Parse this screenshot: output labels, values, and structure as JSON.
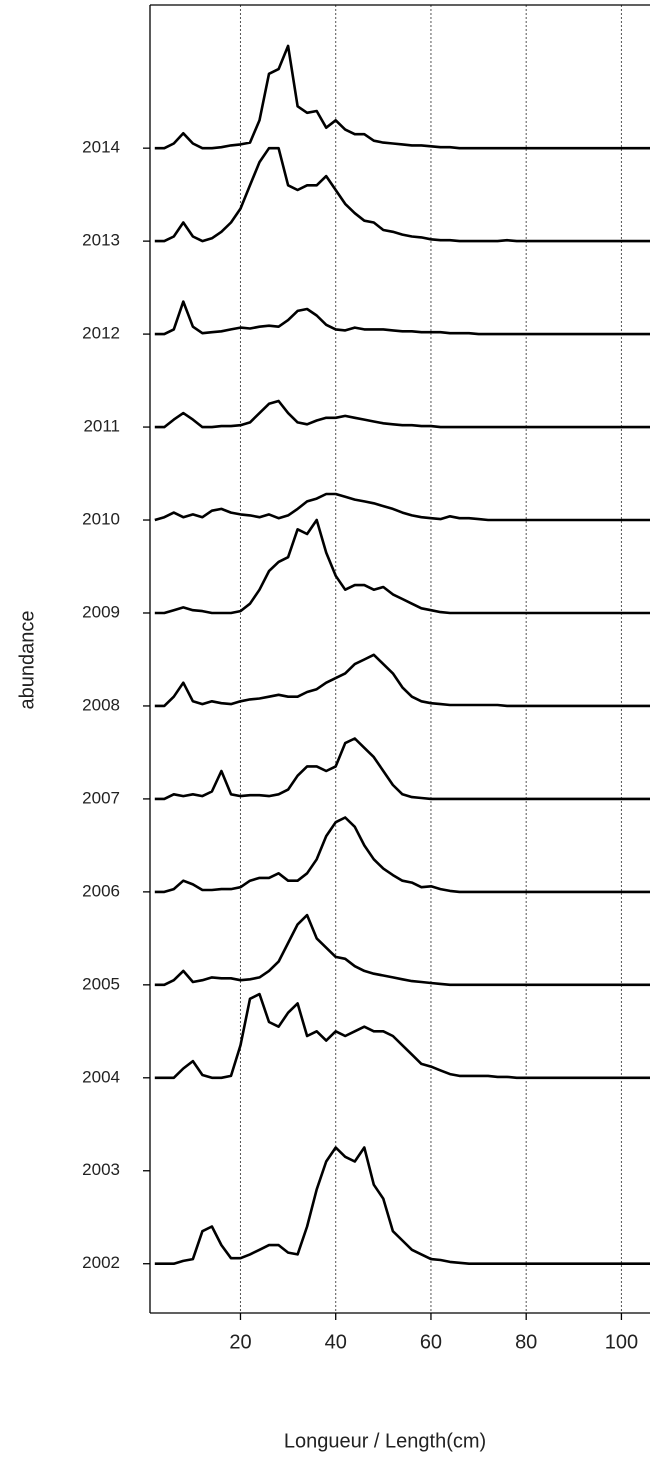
{
  "chart_data": {
    "type": "ridgeline",
    "x_label": "Longueur / Length(cm)",
    "y_label": "abundance",
    "xlim": [
      1,
      106
    ],
    "xticks": [
      20,
      40,
      60,
      80,
      100
    ],
    "ylim": [
      2001.47,
      2015.54
    ],
    "yticks": [
      2002,
      2003,
      2004,
      2005,
      2006,
      2007,
      2008,
      2009,
      2010,
      2011,
      2012,
      2013,
      2014
    ],
    "grid": true,
    "x": [
      2,
      4,
      6,
      8,
      10,
      12,
      14,
      16,
      18,
      20,
      22,
      24,
      26,
      28,
      30,
      32,
      34,
      36,
      38,
      40,
      42,
      44,
      46,
      48,
      50,
      52,
      54,
      56,
      58,
      60,
      62,
      64,
      66,
      68,
      70,
      72,
      74,
      76,
      78,
      80,
      82,
      84,
      86,
      88,
      90,
      92,
      94,
      96,
      98,
      100,
      102,
      104,
      106
    ],
    "series": [
      {
        "baseline": 2014,
        "color": "#000000",
        "values": [
          0,
          0,
          0.05,
          0.16,
          0.05,
          0,
          0,
          0.01,
          0.03,
          0.04,
          0.06,
          0.3,
          0.8,
          0.85,
          1.1,
          0.45,
          0.38,
          0.4,
          0.22,
          0.3,
          0.2,
          0.15,
          0.15,
          0.08,
          0.06,
          0.05,
          0.04,
          0.03,
          0.03,
          0.02,
          0.01,
          0.01,
          0,
          0,
          0,
          0,
          0,
          0,
          0,
          0,
          0,
          0,
          0,
          0,
          0,
          0,
          0,
          0,
          0,
          0,
          0,
          0,
          0
        ]
      },
      {
        "baseline": 2013,
        "color": "#000000",
        "values": [
          0,
          0,
          0.05,
          0.2,
          0.05,
          0,
          0.03,
          0.1,
          0.2,
          0.35,
          0.6,
          0.85,
          1.0,
          1.0,
          0.6,
          0.55,
          0.6,
          0.6,
          0.7,
          0.55,
          0.4,
          0.3,
          0.22,
          0.2,
          0.12,
          0.1,
          0.07,
          0.05,
          0.04,
          0.02,
          0.01,
          0.01,
          0,
          0,
          0,
          0,
          0,
          0.01,
          0,
          0,
          0,
          0,
          0,
          0,
          0,
          0,
          0,
          0,
          0,
          0,
          0,
          0,
          0
        ]
      },
      {
        "baseline": 2012,
        "color": "#000000",
        "values": [
          0,
          0,
          0.05,
          0.35,
          0.08,
          0.01,
          0.02,
          0.03,
          0.05,
          0.07,
          0.06,
          0.08,
          0.09,
          0.08,
          0.15,
          0.25,
          0.27,
          0.2,
          0.1,
          0.05,
          0.04,
          0.07,
          0.05,
          0.05,
          0.05,
          0.04,
          0.03,
          0.03,
          0.02,
          0.02,
          0.02,
          0.01,
          0.01,
          0.01,
          0,
          0,
          0,
          0,
          0,
          0,
          0,
          0,
          0,
          0,
          0,
          0,
          0,
          0,
          0,
          0,
          0,
          0,
          0
        ]
      },
      {
        "baseline": 2011,
        "color": "#000000",
        "values": [
          0,
          0,
          0.08,
          0.15,
          0.08,
          0,
          0,
          0.01,
          0.01,
          0.02,
          0.05,
          0.15,
          0.25,
          0.28,
          0.15,
          0.05,
          0.03,
          0.07,
          0.1,
          0.1,
          0.12,
          0.1,
          0.08,
          0.06,
          0.04,
          0.03,
          0.02,
          0.02,
          0.01,
          0.01,
          0,
          0,
          0,
          0,
          0,
          0,
          0,
          0,
          0,
          0,
          0,
          0,
          0,
          0,
          0,
          0,
          0,
          0,
          0,
          0,
          0,
          0,
          0
        ]
      },
      {
        "baseline": 2010,
        "color": "#000000",
        "values": [
          0,
          0.03,
          0.08,
          0.03,
          0.06,
          0.03,
          0.1,
          0.12,
          0.08,
          0.06,
          0.05,
          0.03,
          0.06,
          0.02,
          0.05,
          0.12,
          0.2,
          0.23,
          0.28,
          0.28,
          0.25,
          0.22,
          0.2,
          0.18,
          0.15,
          0.12,
          0.08,
          0.05,
          0.03,
          0.02,
          0.01,
          0.04,
          0.02,
          0.02,
          0.01,
          0,
          0,
          0,
          0,
          0,
          0,
          0,
          0,
          0,
          0,
          0,
          0,
          0,
          0,
          0,
          0,
          0,
          0
        ]
      },
      {
        "baseline": 2009,
        "color": "#000000",
        "values": [
          0,
          0,
          0.03,
          0.06,
          0.03,
          0.02,
          0,
          0,
          0,
          0.02,
          0.1,
          0.25,
          0.45,
          0.55,
          0.6,
          0.9,
          0.85,
          1.0,
          0.65,
          0.4,
          0.25,
          0.3,
          0.3,
          0.25,
          0.28,
          0.2,
          0.15,
          0.1,
          0.05,
          0.03,
          0.01,
          0,
          0,
          0,
          0,
          0,
          0,
          0,
          0,
          0,
          0,
          0,
          0,
          0,
          0,
          0,
          0,
          0,
          0,
          0,
          0,
          0,
          0
        ]
      },
      {
        "baseline": 2008,
        "color": "#000000",
        "values": [
          0,
          0,
          0.1,
          0.25,
          0.05,
          0.02,
          0.05,
          0.03,
          0.02,
          0.05,
          0.07,
          0.08,
          0.1,
          0.12,
          0.1,
          0.1,
          0.15,
          0.18,
          0.25,
          0.3,
          0.35,
          0.45,
          0.5,
          0.55,
          0.45,
          0.35,
          0.2,
          0.1,
          0.05,
          0.03,
          0.02,
          0.01,
          0.01,
          0.01,
          0.01,
          0.01,
          0.01,
          0,
          0,
          0,
          0,
          0,
          0,
          0,
          0,
          0,
          0,
          0,
          0,
          0,
          0,
          0,
          0
        ]
      },
      {
        "baseline": 2007,
        "color": "#000000",
        "values": [
          0,
          0,
          0.05,
          0.03,
          0.05,
          0.03,
          0.08,
          0.3,
          0.05,
          0.03,
          0.04,
          0.04,
          0.03,
          0.05,
          0.1,
          0.25,
          0.35,
          0.35,
          0.3,
          0.35,
          0.6,
          0.65,
          0.55,
          0.45,
          0.3,
          0.15,
          0.05,
          0.02,
          0.01,
          0,
          0,
          0,
          0,
          0,
          0,
          0,
          0,
          0,
          0,
          0,
          0,
          0,
          0,
          0,
          0,
          0,
          0,
          0,
          0,
          0,
          0,
          0,
          0
        ]
      },
      {
        "baseline": 2006,
        "color": "#000000",
        "values": [
          0,
          0,
          0.03,
          0.12,
          0.08,
          0.02,
          0.02,
          0.03,
          0.03,
          0.05,
          0.12,
          0.15,
          0.15,
          0.2,
          0.12,
          0.12,
          0.2,
          0.35,
          0.6,
          0.75,
          0.8,
          0.7,
          0.5,
          0.35,
          0.25,
          0.18,
          0.12,
          0.1,
          0.05,
          0.06,
          0.03,
          0.01,
          0,
          0,
          0,
          0,
          0,
          0,
          0,
          0,
          0,
          0,
          0,
          0,
          0,
          0,
          0,
          0,
          0,
          0,
          0,
          0,
          0
        ]
      },
      {
        "baseline": 2005,
        "color": "#000000",
        "values": [
          0,
          0,
          0.05,
          0.15,
          0.03,
          0.05,
          0.08,
          0.07,
          0.07,
          0.05,
          0.06,
          0.08,
          0.15,
          0.25,
          0.45,
          0.65,
          0.75,
          0.5,
          0.4,
          0.3,
          0.28,
          0.2,
          0.15,
          0.12,
          0.1,
          0.08,
          0.06,
          0.04,
          0.03,
          0.02,
          0.01,
          0,
          0,
          0,
          0,
          0,
          0,
          0,
          0,
          0,
          0,
          0,
          0,
          0,
          0,
          0,
          0,
          0,
          0,
          0,
          0,
          0,
          0
        ]
      },
      {
        "baseline": 2004,
        "color": "#000000",
        "values": [
          0,
          0,
          0,
          0.1,
          0.18,
          0.03,
          0,
          0,
          0.02,
          0.35,
          0.85,
          0.9,
          0.6,
          0.55,
          0.7,
          0.8,
          0.45,
          0.5,
          0.4,
          0.5,
          0.45,
          0.5,
          0.55,
          0.5,
          0.5,
          0.45,
          0.35,
          0.25,
          0.15,
          0.12,
          0.08,
          0.04,
          0.02,
          0.02,
          0.02,
          0.02,
          0.01,
          0.01,
          0,
          0,
          0,
          0,
          0,
          0,
          0,
          0,
          0,
          0,
          0,
          0,
          0,
          0,
          0
        ]
      },
      {
        "baseline": 2002,
        "color": "#000000",
        "values": [
          0,
          0,
          0,
          0.03,
          0.05,
          0.35,
          0.4,
          0.2,
          0.06,
          0.06,
          0.1,
          0.15,
          0.2,
          0.2,
          0.12,
          0.1,
          0.4,
          0.8,
          1.1,
          1.25,
          1.15,
          1.1,
          1.25,
          0.85,
          0.7,
          0.35,
          0.25,
          0.15,
          0.1,
          0.05,
          0.04,
          0.02,
          0.01,
          0,
          0,
          0,
          0,
          0,
          0,
          0,
          0,
          0,
          0,
          0,
          0,
          0,
          0,
          0,
          0,
          0,
          0,
          0,
          0
        ]
      }
    ]
  }
}
